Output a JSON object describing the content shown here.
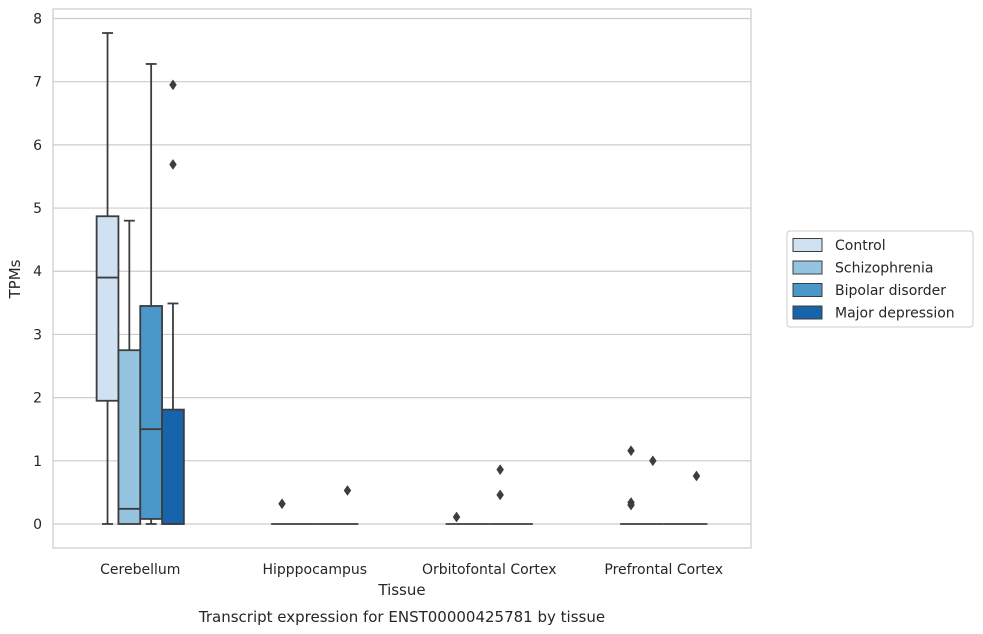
{
  "chart_data": {
    "type": "box",
    "xlabel": "Tissue",
    "ylabel": "TPMs",
    "caption": "Transcript expression for ENST00000425781 by tissue",
    "ylim": [
      -0.38,
      8.15
    ],
    "yticks": [
      "0",
      "1",
      "2",
      "3",
      "4",
      "5",
      "6",
      "7",
      "8"
    ],
    "grid": "horizontal",
    "legend_position": "right",
    "categories": [
      "Cerebellum",
      "Hipppocampus",
      "Orbitofontal Cortex",
      "Prefrontal Cortex"
    ],
    "series": [
      {
        "name": "Control",
        "color": "#d0e1f2",
        "boxes": [
          {
            "whisker_low": 0,
            "q1": 1.95,
            "median": 3.9,
            "q3": 4.87,
            "whisker_high": 7.77,
            "outliers": []
          },
          {
            "whisker_low": 0,
            "q1": 0,
            "median": 0,
            "q3": 0,
            "whisker_high": 0,
            "outliers": [
              0.32
            ]
          },
          {
            "whisker_low": 0,
            "q1": 0,
            "median": 0,
            "q3": 0,
            "whisker_high": 0,
            "outliers": [
              0.11
            ]
          },
          {
            "whisker_low": 0,
            "q1": 0,
            "median": 0,
            "q3": 0,
            "whisker_high": 0,
            "outliers": [
              1.16,
              0.34,
              0.3
            ]
          }
        ]
      },
      {
        "name": "Schizophrenia",
        "color": "#94c4df",
        "boxes": [
          {
            "whisker_low": 0,
            "q1": 0,
            "median": 0.24,
            "q3": 2.75,
            "whisker_high": 4.8,
            "outliers": []
          },
          {
            "whisker_low": 0,
            "q1": 0,
            "median": 0,
            "q3": 0,
            "whisker_high": 0,
            "outliers": []
          },
          {
            "whisker_low": 0,
            "q1": 0,
            "median": 0,
            "q3": 0,
            "whisker_high": 0,
            "outliers": []
          },
          {
            "whisker_low": 0,
            "q1": 0,
            "median": 0,
            "q3": 0,
            "whisker_high": 0,
            "outliers": [
              1.0
            ]
          }
        ]
      },
      {
        "name": "Bipolar disorder",
        "color": "#4a98c9",
        "boxes": [
          {
            "whisker_low": 0,
            "q1": 0.08,
            "median": 1.5,
            "q3": 3.45,
            "whisker_high": 7.28,
            "outliers": []
          },
          {
            "whisker_low": 0,
            "q1": 0,
            "median": 0,
            "q3": 0,
            "whisker_high": 0,
            "outliers": []
          },
          {
            "whisker_low": 0,
            "q1": 0,
            "median": 0,
            "q3": 0,
            "whisker_high": 0,
            "outliers": [
              0.86,
              0.46
            ]
          },
          {
            "whisker_low": 0,
            "q1": 0,
            "median": 0,
            "q3": 0,
            "whisker_high": 0,
            "outliers": []
          }
        ]
      },
      {
        "name": "Major depression",
        "color": "#1764ab",
        "boxes": [
          {
            "whisker_low": 0,
            "q1": 0,
            "median": 0,
            "q3": 1.81,
            "whisker_high": 3.49,
            "outliers": [
              6.95,
              5.69
            ]
          },
          {
            "whisker_low": 0,
            "q1": 0,
            "median": 0,
            "q3": 0,
            "whisker_high": 0,
            "outliers": [
              0.53
            ]
          },
          {
            "whisker_low": 0,
            "q1": 0,
            "median": 0,
            "q3": 0,
            "whisker_high": 0,
            "outliers": []
          },
          {
            "whisker_low": 0,
            "q1": 0,
            "median": 0,
            "q3": 0,
            "whisker_high": 0,
            "outliers": [
              0.76
            ]
          }
        ]
      }
    ]
  }
}
